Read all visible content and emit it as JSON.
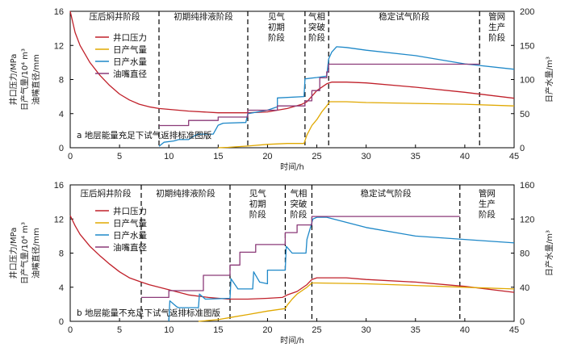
{
  "chart_data": [
    {
      "type": "line",
      "caption": "a 地层能量充足下试气返排标准图版",
      "xlabel": "时间/h",
      "ylabel_left": [
        "井口压力/MPa",
        "日产气量/10⁴ m³",
        "油嘴直径/mm"
      ],
      "ylabel_right": "日产水量/m³",
      "xlim": [
        0,
        45
      ],
      "ylim_left": [
        0,
        16
      ],
      "ylim_right": [
        0,
        200
      ],
      "xticks": [
        "0",
        "5",
        "10",
        "15",
        "20",
        "25",
        "30",
        "35",
        "40",
        "45"
      ],
      "yticks_left": [
        "0",
        "4",
        "8",
        "12",
        "16"
      ],
      "yticks_right": [
        "0",
        "50",
        "100",
        "150",
        "200"
      ],
      "stage_boundaries": [
        9,
        18,
        23.8,
        26.2,
        41.5
      ],
      "stages": [
        {
          "label": [
            "压后焖井阶段"
          ],
          "x_start": 0,
          "x_end": 9
        },
        {
          "label": [
            "初期纯排液阶段"
          ],
          "x_start": 9,
          "x_end": 18
        },
        {
          "label": [
            "见气",
            "初期",
            "阶段"
          ],
          "x_start": 18,
          "x_end": 23.8
        },
        {
          "label": [
            "气相",
            "突破",
            "阶段"
          ],
          "x_start": 23.8,
          "x_end": 26.2
        },
        {
          "label": [
            "稳定试气阶段"
          ],
          "x_start": 26.2,
          "x_end": 41.5
        },
        {
          "label": [
            "管网",
            "生产",
            "阶段"
          ],
          "x_start": 41.5,
          "x_end": 45
        }
      ],
      "legend": [
        "井口压力",
        "日产气量",
        "日产水量",
        "油嘴直径"
      ],
      "legend_position": "top-left",
      "series": [
        {
          "name": "井口压力",
          "color": "#c0202a",
          "axis": "left",
          "points": [
            [
              0,
              16
            ],
            [
              0.5,
              13.5
            ],
            [
              1,
              12
            ],
            [
              2,
              10
            ],
            [
              3,
              8.5
            ],
            [
              4,
              7.3
            ],
            [
              5,
              6.3
            ],
            [
              6,
              5.6
            ],
            [
              7,
              5.1
            ],
            [
              8,
              4.8
            ],
            [
              9,
              4.6
            ],
            [
              12,
              4.3
            ],
            [
              15,
              4.1
            ],
            [
              17,
              4.1
            ],
            [
              18,
              4.1
            ],
            [
              20,
              4.2
            ],
            [
              22,
              4.6
            ],
            [
              23.5,
              5.1
            ],
            [
              24,
              5.4
            ],
            [
              25,
              6.7
            ],
            [
              26,
              7.5
            ],
            [
              26.5,
              7.7
            ],
            [
              28,
              7.7
            ],
            [
              30,
              7.6
            ],
            [
              35,
              7.1
            ],
            [
              40,
              6.5
            ],
            [
              45,
              5.8
            ]
          ]
        },
        {
          "name": "日产气量",
          "color": "#e0a800",
          "axis": "left",
          "points": [
            [
              15,
              0
            ],
            [
              16,
              0.05
            ],
            [
              18,
              0.2
            ],
            [
              20,
              0.4
            ],
            [
              22,
              0.5
            ],
            [
              23.7,
              0.5
            ],
            [
              24,
              1.5
            ],
            [
              24.5,
              2.6
            ],
            [
              25,
              3.3
            ],
            [
              25.5,
              4.2
            ],
            [
              26,
              4.9
            ],
            [
              26.3,
              5.4
            ],
            [
              28,
              5.4
            ],
            [
              30,
              5.3
            ],
            [
              35,
              5.2
            ],
            [
              40,
              5.1
            ],
            [
              45,
              4.9
            ]
          ]
        },
        {
          "name": "日产水量",
          "color": "#1e88c8",
          "axis": "right",
          "points": [
            [
              9,
              2
            ],
            [
              9.5,
              8
            ],
            [
              10.5,
              10
            ],
            [
              11,
              12
            ],
            [
              12,
              12
            ],
            [
              12.5,
              17
            ],
            [
              13,
              20
            ],
            [
              14.5,
              20
            ],
            [
              15,
              33
            ],
            [
              15.5,
              36
            ],
            [
              17.8,
              37
            ],
            [
              18,
              50
            ],
            [
              20,
              55
            ],
            [
              21,
              60
            ],
            [
              21,
              73
            ],
            [
              23.7,
              75
            ],
            [
              23.8,
              101
            ],
            [
              25,
              103
            ],
            [
              26,
              105
            ],
            [
              26.2,
              130
            ],
            [
              26.5,
              140
            ],
            [
              27,
              148
            ],
            [
              28,
              147
            ],
            [
              30,
              143
            ],
            [
              35,
              135
            ],
            [
              40,
              123
            ],
            [
              45,
              115
            ]
          ]
        },
        {
          "name": "油嘴直径",
          "color": "#8b3a78",
          "axis": "left",
          "points": [
            [
              9,
              2.6
            ],
            [
              12,
              2.6
            ],
            [
              12,
              3.2
            ],
            [
              15,
              3.2
            ],
            [
              15,
              3.6
            ],
            [
              18,
              3.6
            ],
            [
              18,
              4.4
            ],
            [
              21,
              4.4
            ],
            [
              21,
              4.9
            ],
            [
              23.8,
              4.9
            ],
            [
              23.8,
              5.5
            ],
            [
              24.5,
              5.5
            ],
            [
              24.5,
              6.7
            ],
            [
              25.3,
              6.7
            ],
            [
              25.3,
              8.2
            ],
            [
              26,
              8.2
            ],
            [
              26,
              8.9
            ],
            [
              26.2,
              8.9
            ],
            [
              26.2,
              9.8
            ],
            [
              41.5,
              9.8
            ]
          ]
        }
      ]
    },
    {
      "type": "line",
      "caption": "b 地层能量不充足下试气返排标准图版",
      "xlabel": "时间/h",
      "ylabel_left": [
        "井口压力/MPa",
        "日产气量/10⁴ m³",
        "油嘴直径/mm"
      ],
      "ylabel_right": "日产水量/m³",
      "xlim": [
        0,
        45
      ],
      "ylim_left": [
        0,
        16
      ],
      "ylim_right": [
        0,
        160
      ],
      "xticks": [
        "0",
        "5",
        "10",
        "15",
        "20",
        "25",
        "30",
        "35",
        "40",
        "45"
      ],
      "yticks_left": [
        "0",
        "4",
        "8",
        "12",
        "16"
      ],
      "yticks_right": [
        "0",
        "40",
        "80",
        "120",
        "160"
      ],
      "stage_boundaries": [
        7.2,
        16.2,
        21.8,
        24.5,
        39.5
      ],
      "stages": [
        {
          "label": [
            "压后焖井阶段"
          ],
          "x_start": 0,
          "x_end": 7.2
        },
        {
          "label": [
            "初期纯排液阶段"
          ],
          "x_start": 7.2,
          "x_end": 16.2
        },
        {
          "label": [
            "见气",
            "初期",
            "阶段"
          ],
          "x_start": 16.2,
          "x_end": 21.8
        },
        {
          "label": [
            "气相",
            "突破",
            "阶段"
          ],
          "x_start": 21.8,
          "x_end": 24.5
        },
        {
          "label": [
            "稳定试气阶段"
          ],
          "x_start": 24.5,
          "x_end": 39.5
        },
        {
          "label": [
            "管网",
            "生产",
            "阶段"
          ],
          "x_start": 39.5,
          "x_end": 45
        }
      ],
      "legend": [
        "井口压力",
        "日产气量",
        "日产水量",
        "油嘴直径"
      ],
      "legend_position": "top-left",
      "series": [
        {
          "name": "井口压力",
          "color": "#c0202a",
          "axis": "left",
          "points": [
            [
              0,
              12.4
            ],
            [
              0.5,
              11.2
            ],
            [
              1,
              10.2
            ],
            [
              2,
              8.8
            ],
            [
              3,
              7.7
            ],
            [
              4,
              6.7
            ],
            [
              5,
              5.8
            ],
            [
              6,
              5.1
            ],
            [
              7.2,
              4.6
            ],
            [
              8,
              4.3
            ],
            [
              10,
              3.7
            ],
            [
              12,
              3.1
            ],
            [
              14,
              2.8
            ],
            [
              16,
              2.6
            ],
            [
              18,
              2.6
            ],
            [
              20,
              2.7
            ],
            [
              21.5,
              2.8
            ],
            [
              22,
              3.1
            ],
            [
              23,
              3.5
            ],
            [
              24,
              4.3
            ],
            [
              24.5,
              4.9
            ],
            [
              25,
              5.1
            ],
            [
              28,
              5.1
            ],
            [
              30,
              4.9
            ],
            [
              35,
              4.6
            ],
            [
              40,
              4.1
            ],
            [
              45,
              3.4
            ]
          ]
        },
        {
          "name": "日产气量",
          "color": "#e0a800",
          "axis": "left",
          "points": [
            [
              13,
              0
            ],
            [
              15,
              0.2
            ],
            [
              16.5,
              0.5
            ],
            [
              18,
              0.8
            ],
            [
              20,
              1.2
            ],
            [
              21.8,
              1.5
            ],
            [
              22,
              1.9
            ],
            [
              22.5,
              2.6
            ],
            [
              23,
              3.2
            ],
            [
              23.5,
              3.6
            ],
            [
              24,
              4.0
            ],
            [
              24.5,
              4.5
            ],
            [
              25,
              4.5
            ],
            [
              30,
              4.4
            ],
            [
              35,
              4.2
            ],
            [
              40,
              4.0
            ],
            [
              45,
              3.8
            ]
          ]
        },
        {
          "name": "日产水量",
          "color": "#1e88c8",
          "axis": "right",
          "points": [
            [
              10,
              0
            ],
            [
              10.1,
              24
            ],
            [
              10.8,
              17
            ],
            [
              11,
              16
            ],
            [
              13,
              16
            ],
            [
              13.1,
              32
            ],
            [
              13.7,
              26
            ],
            [
              16.2,
              27
            ],
            [
              16.3,
              50
            ],
            [
              17,
              38
            ],
            [
              18.5,
              38
            ],
            [
              18.6,
              58
            ],
            [
              19.2,
              46
            ],
            [
              20,
              44
            ],
            [
              20,
              60
            ],
            [
              21.8,
              60
            ],
            [
              21.9,
              88
            ],
            [
              22.5,
              80
            ],
            [
              23.9,
              80
            ],
            [
              24,
              96
            ],
            [
              24.6,
              120
            ],
            [
              25,
              122
            ],
            [
              26,
              122
            ],
            [
              30,
              110
            ],
            [
              35,
              100
            ],
            [
              40,
              96
            ],
            [
              45,
              92
            ]
          ]
        },
        {
          "name": "油嘴直径",
          "color": "#8b3a78",
          "axis": "left",
          "points": [
            [
              7.2,
              2.8
            ],
            [
              10,
              2.8
            ],
            [
              10,
              3.6
            ],
            [
              13.5,
              3.6
            ],
            [
              13.5,
              5.4
            ],
            [
              16.2,
              5.4
            ],
            [
              16.2,
              6.6
            ],
            [
              17.2,
              6.6
            ],
            [
              17.2,
              8.1
            ],
            [
              18.8,
              8.1
            ],
            [
              18.8,
              9.0
            ],
            [
              21.8,
              9.0
            ],
            [
              21.8,
              10.4
            ],
            [
              23,
              10.4
            ],
            [
              23,
              11.3
            ],
            [
              24.5,
              11.3
            ],
            [
              24.5,
              12.3
            ],
            [
              39.5,
              12.3
            ]
          ]
        }
      ]
    }
  ]
}
